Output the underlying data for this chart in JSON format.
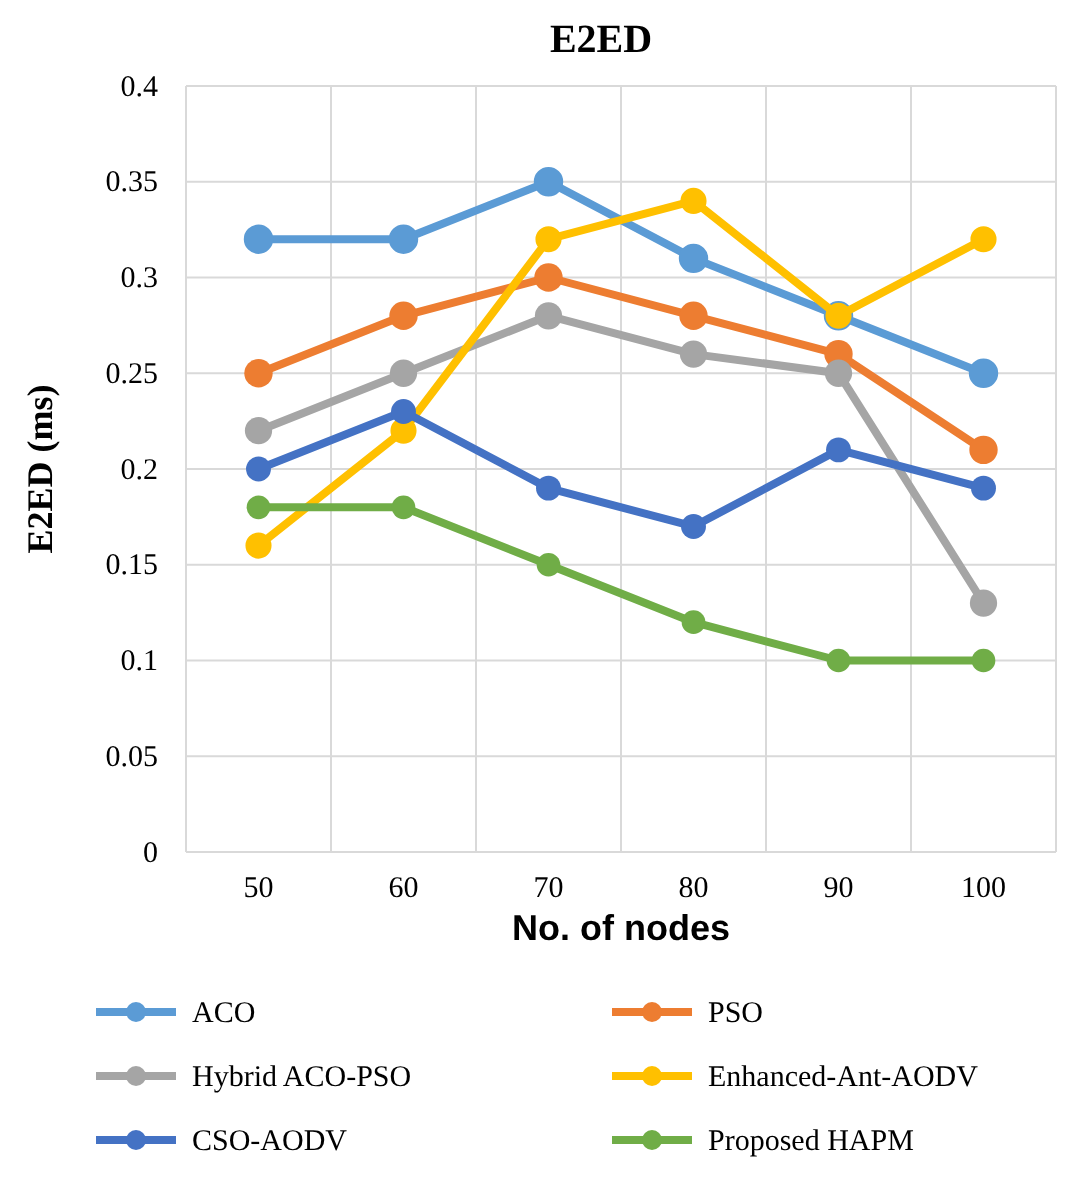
{
  "chart_data": {
    "type": "line",
    "title": "E2ED",
    "xlabel": "No. of nodes",
    "ylabel": "E2ED (ms)",
    "categories": [
      "50",
      "60",
      "70",
      "80",
      "90",
      "100"
    ],
    "ylim": [
      0,
      0.4
    ],
    "yticks": [
      0,
      0.05,
      0.1,
      0.15,
      0.2,
      0.25,
      0.3,
      0.35,
      0.4
    ],
    "grid": true,
    "legend": "bottom",
    "marker": "circle",
    "line_style": "solid",
    "series": [
      {
        "name": "ACO",
        "color": "#5b9bd5",
        "values": [
          0.32,
          0.32,
          0.35,
          0.31,
          0.28,
          0.25
        ]
      },
      {
        "name": "PSO",
        "color": "#ed7d31",
        "values": [
          0.25,
          0.28,
          0.3,
          0.28,
          0.26,
          0.21
        ]
      },
      {
        "name": "Hybrid ACO-PSO",
        "color": "#a5a5a5",
        "values": [
          0.22,
          0.25,
          0.28,
          0.26,
          0.25,
          0.13
        ]
      },
      {
        "name": "Enhanced-Ant-AODV",
        "color": "#ffc000",
        "values": [
          0.16,
          0.22,
          0.32,
          0.34,
          0.28,
          0.32
        ]
      },
      {
        "name": "CSO-AODV",
        "color": "#4472c4",
        "values": [
          0.2,
          0.23,
          0.19,
          0.17,
          0.21,
          0.19
        ]
      },
      {
        "name": "Proposed HAPM",
        "color": "#70ad47",
        "values": [
          0.18,
          0.18,
          0.15,
          0.12,
          0.1,
          0.1
        ]
      }
    ]
  }
}
